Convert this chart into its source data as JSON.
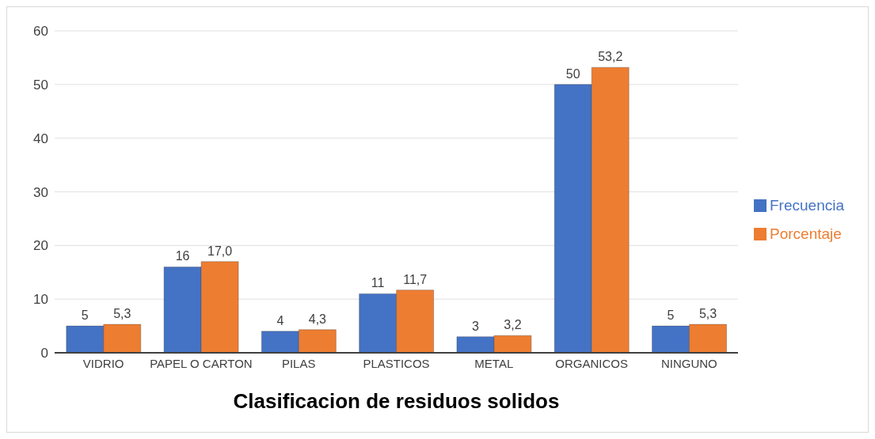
{
  "chart_data": {
    "type": "bar",
    "xlabel": "Clasificacion de residuos solidos",
    "categories": [
      "VIDRIO",
      "PAPEL O CARTON",
      "PILAS",
      "PLASTICOS",
      "METAL",
      "ORGANICOS",
      "NINGUNO"
    ],
    "series": [
      {
        "name": "Frecuencia",
        "color": "#4472c4",
        "values": [
          5,
          16,
          4,
          11,
          3,
          50,
          5
        ],
        "value_labels": [
          "5",
          "16",
          "4",
          "11",
          "3",
          "50",
          "5"
        ]
      },
      {
        "name": "Porcentaje",
        "color": "#ed7d31",
        "values": [
          5.3,
          17.0,
          4.3,
          11.7,
          3.2,
          53.2,
          5.3
        ],
        "value_labels": [
          "5,3",
          "17,0",
          "4,3",
          "11,7",
          "3,2",
          "53,2",
          "5,3"
        ]
      }
    ],
    "ylim": [
      0,
      60
    ],
    "yticks": [
      0,
      10,
      20,
      30,
      40,
      50,
      60
    ],
    "grid": "y",
    "legend": "right"
  }
}
